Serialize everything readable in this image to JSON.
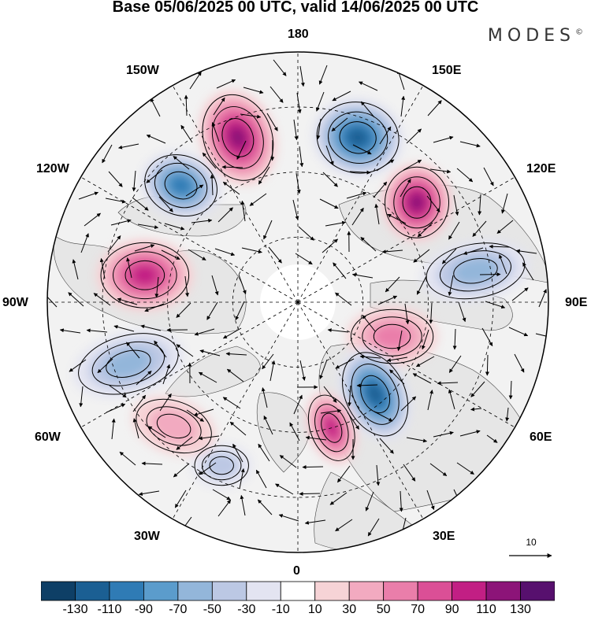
{
  "title": "Base 05/06/2025 00 UTC, valid 14/06/2025 00 UTC",
  "brand": {
    "name": "MODES",
    "mark": "©"
  },
  "map": {
    "projection": "north-polar-stereographic",
    "center": "North Pole",
    "longitude_labels": {
      "lon_180": "180",
      "lon_150e": "150E",
      "lon_120e": "120E",
      "lon_90e": "90E",
      "lon_60e": "60E",
      "lon_30e": "30E",
      "lon_0": "0",
      "lon_30w": "30W",
      "lon_60w": "60W",
      "lon_90w": "90W",
      "lon_120w": "120W",
      "lon_150w": "150W"
    },
    "graticule": "dashed",
    "anomaly_centers": [
      {
        "label": "positive",
        "sign": 1,
        "level": 110,
        "near": "160W"
      },
      {
        "label": "negative",
        "sign": -1,
        "level": -110,
        "near": "160E"
      },
      {
        "label": "positive",
        "sign": 1,
        "level": 110,
        "near": "130E"
      },
      {
        "label": "negative",
        "sign": -1,
        "level": -90,
        "near": "135W"
      },
      {
        "label": "positive",
        "sign": 1,
        "level": 90,
        "near": "100W"
      },
      {
        "label": "negative",
        "sign": -1,
        "level": -50,
        "near": "100E"
      },
      {
        "label": "positive",
        "sign": 1,
        "level": 50,
        "near": "70E"
      },
      {
        "label": "negative",
        "sign": -1,
        "level": -110,
        "near": "40E"
      },
      {
        "label": "positive",
        "sign": 1,
        "level": 90,
        "near": "15E"
      },
      {
        "label": "negative",
        "sign": -1,
        "level": -50,
        "near": "70W"
      },
      {
        "label": "negative",
        "sign": -1,
        "level": -30,
        "near": "25W"
      },
      {
        "label": "positive",
        "sign": 1,
        "level": 30,
        "near": "45W"
      }
    ]
  },
  "vector_reference": {
    "value": "10"
  },
  "colorbar": {
    "ticks": [
      "-130",
      "-110",
      "-90",
      "-70",
      "-50",
      "-30",
      "-10",
      "10",
      "30",
      "50",
      "70",
      "90",
      "110",
      "130"
    ],
    "colors": [
      "#0e3f66",
      "#1b5f93",
      "#2f7bb5",
      "#5b9ccc",
      "#93b6da",
      "#bcc8e4",
      "#e3e4f1",
      "#ffffff",
      "#f6d3d6",
      "#f2aac0",
      "#ea7eaa",
      "#db4f96",
      "#c21f84",
      "#8c1478",
      "#57106e"
    ]
  }
}
